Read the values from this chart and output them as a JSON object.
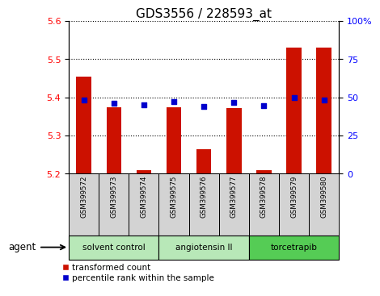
{
  "title": "GDS3556 / 228593_at",
  "samples": [
    "GSM399572",
    "GSM399573",
    "GSM399574",
    "GSM399575",
    "GSM399576",
    "GSM399577",
    "GSM399578",
    "GSM399579",
    "GSM399580"
  ],
  "red_values": [
    5.455,
    5.375,
    5.21,
    5.375,
    5.265,
    5.372,
    5.21,
    5.53,
    5.53
  ],
  "blue_values": [
    48,
    46,
    45,
    47,
    44,
    46.5,
    44.5,
    50,
    48
  ],
  "ylim_left": [
    5.2,
    5.6
  ],
  "ylim_right": [
    0,
    100
  ],
  "yticks_left": [
    5.2,
    5.3,
    5.4,
    5.5,
    5.6
  ],
  "yticks_right": [
    0,
    25,
    50,
    75,
    100
  ],
  "group_boundaries": [
    [
      0,
      2,
      "solvent control",
      "#b8e8b8"
    ],
    [
      3,
      5,
      "angiotensin II",
      "#b8e8b8"
    ],
    [
      6,
      8,
      "torcetrapib",
      "#55cc55"
    ]
  ],
  "agent_label": "agent",
  "legend_red": "transformed count",
  "legend_blue": "percentile rank within the sample",
  "bar_color": "#cc1100",
  "marker_color": "#0000cc",
  "background_color": "#ffffff",
  "sample_bg": "#d3d3d3",
  "title_fontsize": 11
}
